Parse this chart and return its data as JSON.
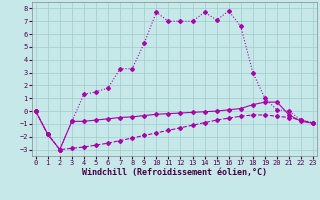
{
  "xlabel": "Windchill (Refroidissement éolien,°C)",
  "ylabel": "",
  "bg_color": "#c6e8e8",
  "grid_color": "#a0cccc",
  "line_color": "#aa00aa",
  "x": [
    0,
    1,
    2,
    3,
    4,
    5,
    6,
    7,
    8,
    9,
    10,
    11,
    12,
    13,
    14,
    15,
    16,
    17,
    18,
    19,
    20,
    21,
    22,
    23
  ],
  "line_top": [
    0.0,
    -1.8,
    -3.0,
    -0.8,
    1.3,
    1.5,
    1.8,
    3.3,
    3.3,
    5.3,
    7.7,
    7.0,
    7.0,
    7.0,
    7.7,
    7.1,
    7.8,
    6.6,
    3.0,
    1.0,
    0.1,
    0.0,
    -0.7,
    -0.9
  ],
  "line_mid": [
    0.0,
    -1.8,
    -3.0,
    -0.8,
    -0.8,
    -0.7,
    -0.6,
    -0.5,
    -0.45,
    -0.35,
    -0.25,
    -0.2,
    -0.15,
    -0.1,
    -0.05,
    0.0,
    0.1,
    0.2,
    0.5,
    0.7,
    0.7,
    -0.3,
    -0.8,
    -0.95
  ],
  "line_bot": [
    0.0,
    -1.8,
    -3.0,
    -2.9,
    -2.8,
    -2.65,
    -2.5,
    -2.3,
    -2.1,
    -1.9,
    -1.7,
    -1.5,
    -1.3,
    -1.1,
    -0.9,
    -0.7,
    -0.55,
    -0.4,
    -0.3,
    -0.3,
    -0.4,
    -0.5,
    -0.7,
    -0.95
  ],
  "ylim": [
    -3.5,
    8.5
  ],
  "xlim": [
    -0.3,
    23.3
  ],
  "yticks": [
    -3,
    -2,
    -1,
    0,
    1,
    2,
    3,
    4,
    5,
    6,
    7,
    8
  ],
  "xticks": [
    0,
    1,
    2,
    3,
    4,
    5,
    6,
    7,
    8,
    9,
    10,
    11,
    12,
    13,
    14,
    15,
    16,
    17,
    18,
    19,
    20,
    21,
    22,
    23
  ],
  "tick_fontsize": 5.0,
  "xlabel_fontsize": 6.0,
  "markersize": 2.0,
  "linewidth": 0.8
}
